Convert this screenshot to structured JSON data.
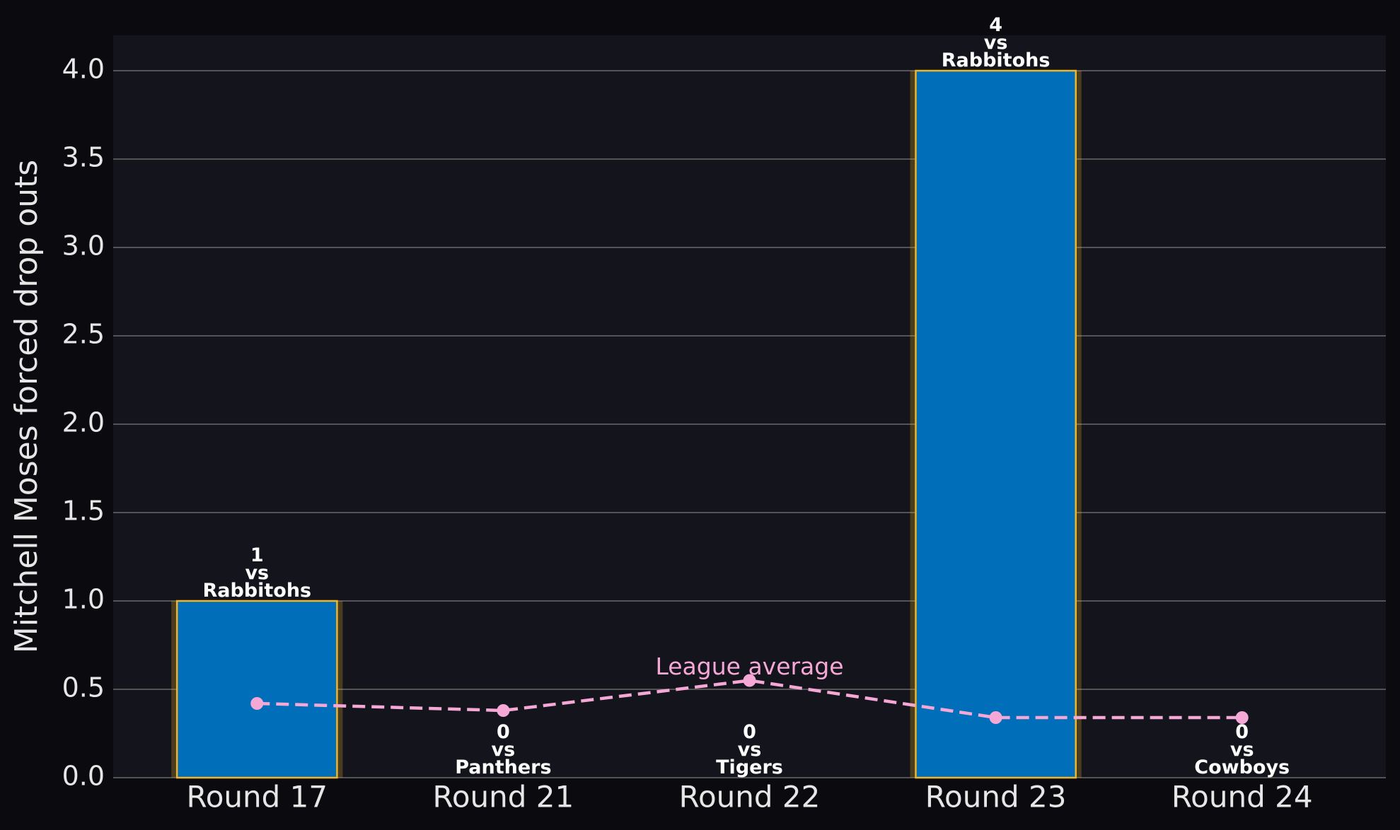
{
  "chart_data": {
    "type": "bar",
    "ylabel": "Mitchell Moses forced drop outs",
    "categories": [
      "Round 17",
      "Round 21",
      "Round 22",
      "Round 23",
      "Round 24"
    ],
    "values": [
      1,
      0,
      0,
      4,
      0
    ],
    "value_labels": [
      "1\nvs\nRabbitohs",
      "0\nvs\nPanthers",
      "0\nvs\nTigers",
      "4\nvs\nRabbitohs",
      "0\nvs\nCowboys"
    ],
    "color": "#006eb8",
    "edge_color": "#f0b429",
    "line": {
      "label": "League average",
      "color": "#f5a8d6",
      "values": [
        0.42,
        0.38,
        0.55,
        0.34,
        0.34
      ]
    },
    "ylim": [
      0,
      4.2
    ],
    "yticks": [
      {
        "value": 0,
        "label": "0.0"
      },
      {
        "value": 0.5,
        "label": "0.5"
      },
      {
        "value": 1,
        "label": "1.0"
      },
      {
        "value": 1.5,
        "label": "1.5"
      },
      {
        "value": 2,
        "label": "2.0"
      },
      {
        "value": 2.5,
        "label": "2.5"
      },
      {
        "value": 3,
        "label": "3.0"
      },
      {
        "value": 3.5,
        "label": "3.5"
      },
      {
        "value": 4,
        "label": "4.0"
      }
    ],
    "grid": true
  }
}
